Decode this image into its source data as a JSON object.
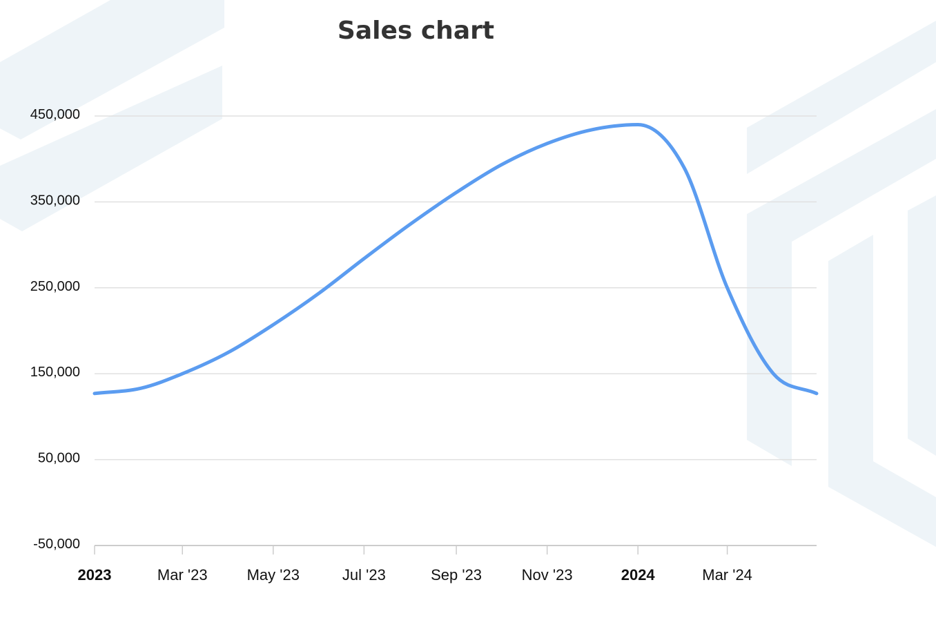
{
  "chart_data": {
    "type": "line",
    "title": "Sales chart",
    "xlabel": "",
    "ylabel": "",
    "ylim": [
      -50000,
      450000
    ],
    "yticks": [
      -50000,
      50000,
      150000,
      250000,
      350000,
      450000
    ],
    "ytick_labels": [
      "-50,000",
      "50,000",
      "150,000",
      "250,000",
      "350,000",
      "450,000"
    ],
    "xlim": [
      "2023-01-01",
      "2024-04-30"
    ],
    "xticks": [
      {
        "date": "2023-01-01",
        "label": "2023",
        "major": true
      },
      {
        "date": "2023-03-01",
        "label": "Mar '23",
        "major": false
      },
      {
        "date": "2023-05-01",
        "label": "May '23",
        "major": false
      },
      {
        "date": "2023-07-01",
        "label": "Jul '23",
        "major": false
      },
      {
        "date": "2023-09-01",
        "label": "Sep '23",
        "major": false
      },
      {
        "date": "2023-11-01",
        "label": "Nov '23",
        "major": false
      },
      {
        "date": "2024-01-01",
        "label": "2024",
        "major": true
      },
      {
        "date": "2024-03-01",
        "label": "Mar '24",
        "major": false
      }
    ],
    "grid": true,
    "legend": "none",
    "series": [
      {
        "color": "#5b9cf0",
        "x": [
          "2023-01-01",
          "2023-02-01",
          "2023-03-01",
          "2023-04-01",
          "2023-05-01",
          "2023-06-01",
          "2023-07-01",
          "2023-08-01",
          "2023-09-01",
          "2023-10-01",
          "2023-11-01",
          "2023-12-01",
          "2024-01-01",
          "2024-02-01",
          "2024-03-01",
          "2024-04-01",
          "2024-04-30"
        ],
        "y": [
          127000,
          133000,
          150000,
          175000,
          207000,
          244000,
          284000,
          324000,
          361000,
          393000,
          418000,
          434000,
          440000,
          390000,
          250000,
          150000,
          127000
        ]
      }
    ]
  }
}
